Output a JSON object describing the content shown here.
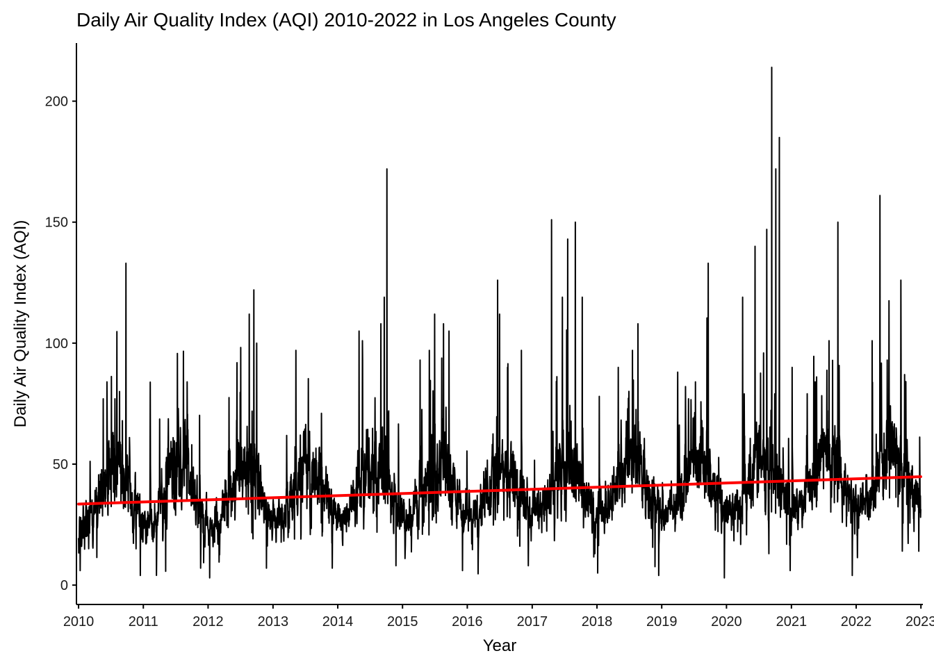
{
  "chart_data": {
    "type": "line",
    "title": "Daily Air Quality Index (AQI) 2010-2022 in Los Angeles County",
    "xlabel": "Year",
    "ylabel": "Daily Air Quality Index (AQI)",
    "x_ticks": [
      "2010",
      "2011",
      "2012",
      "2013",
      "2014",
      "2015",
      "2016",
      "2017",
      "2018",
      "2019",
      "2020",
      "2021",
      "2022",
      "2023"
    ],
    "y_ticks": [
      0,
      50,
      100,
      150,
      200
    ],
    "xlim": [
      "2009-12-20",
      "2023-01-12"
    ],
    "ylim": [
      -8,
      224
    ],
    "grid": false,
    "colors": {
      "series": "#000000",
      "trend": "#ff0000",
      "axis": "#000000"
    },
    "series": [
      {
        "label": "daily AQI",
        "baseline_by_season": {
          "winter_mean": 25,
          "summer_mean": 45,
          "noise_sd": 7
        },
        "yearly_range": [
          {
            "year": 2010,
            "min": 6,
            "max": 133
          },
          {
            "year": 2011,
            "min": 4,
            "max": 84
          },
          {
            "year": 2012,
            "min": 3,
            "max": 122
          },
          {
            "year": 2013,
            "min": 7,
            "max": 97
          },
          {
            "year": 2014,
            "min": 7,
            "max": 172
          },
          {
            "year": 2015,
            "min": 11,
            "max": 112
          },
          {
            "year": 2016,
            "min": 6,
            "max": 126
          },
          {
            "year": 2017,
            "min": 8,
            "max": 151
          },
          {
            "year": 2018,
            "min": 5,
            "max": 108
          },
          {
            "year": 2019,
            "min": 4,
            "max": 133
          },
          {
            "year": 2020,
            "min": 3,
            "max": 214
          },
          {
            "year": 2021,
            "min": 6,
            "max": 150
          },
          {
            "year": 2022,
            "min": 4,
            "max": 161
          }
        ],
        "spikes": [
          {
            "x": "2010-05-20",
            "y": 77
          },
          {
            "x": "2010-06-10",
            "y": 84
          },
          {
            "x": "2010-07-25",
            "y": 77
          },
          {
            "x": "2010-08-20",
            "y": 80
          },
          {
            "x": "2010-09-25",
            "y": 133
          },
          {
            "x": "2010-10-15",
            "y": 61
          },
          {
            "x": "2011-07-15",
            "y": 71
          },
          {
            "x": "2011-09-05",
            "y": 84
          },
          {
            "x": "2011-10-01",
            "y": 58
          },
          {
            "x": "2012-08-20",
            "y": 112
          },
          {
            "x": "2012-09-15",
            "y": 122
          },
          {
            "x": "2012-10-01",
            "y": 100
          },
          {
            "x": "2013-05-10",
            "y": 97
          },
          {
            "x": "2013-10-01",
            "y": 71
          },
          {
            "x": "2014-05-01",
            "y": 105
          },
          {
            "x": "2014-05-20",
            "y": 101
          },
          {
            "x": "2014-09-01",
            "y": 108
          },
          {
            "x": "2014-09-20",
            "y": 119
          },
          {
            "x": "2014-10-05",
            "y": 172
          },
          {
            "x": "2015-04-10",
            "y": 93
          },
          {
            "x": "2015-06-01",
            "y": 97
          },
          {
            "x": "2015-07-01",
            "y": 112
          },
          {
            "x": "2015-08-20",
            "y": 108
          },
          {
            "x": "2015-09-20",
            "y": 105
          },
          {
            "x": "2016-06-20",
            "y": 126
          },
          {
            "x": "2016-07-01",
            "y": 112
          },
          {
            "x": "2016-08-15",
            "y": 90
          },
          {
            "x": "2016-11-01",
            "y": 97
          },
          {
            "x": "2017-04-20",
            "y": 151
          },
          {
            "x": "2017-06-20",
            "y": 119
          },
          {
            "x": "2017-07-20",
            "y": 143
          },
          {
            "x": "2017-09-01",
            "y": 150
          },
          {
            "x": "2017-10-10",
            "y": 119
          },
          {
            "x": "2018-05-01",
            "y": 90
          },
          {
            "x": "2018-07-20",
            "y": 97
          },
          {
            "x": "2018-08-20",
            "y": 108
          },
          {
            "x": "2019-06-01",
            "y": 77
          },
          {
            "x": "2019-07-10",
            "y": 84
          },
          {
            "x": "2019-09-20",
            "y": 133
          },
          {
            "x": "2020-04-01",
            "y": 119
          },
          {
            "x": "2020-06-10",
            "y": 140
          },
          {
            "x": "2020-08-15",
            "y": 147
          },
          {
            "x": "2020-09-12",
            "y": 214
          },
          {
            "x": "2020-10-05",
            "y": 172
          },
          {
            "x": "2020-10-25",
            "y": 185
          },
          {
            "x": "2021-01-05",
            "y": 90
          },
          {
            "x": "2021-05-15",
            "y": 84
          },
          {
            "x": "2021-08-01",
            "y": 101
          },
          {
            "x": "2021-09-20",
            "y": 150
          },
          {
            "x": "2022-04-01",
            "y": 101
          },
          {
            "x": "2022-05-15",
            "y": 161
          },
          {
            "x": "2022-06-25",
            "y": 93
          },
          {
            "x": "2022-09-10",
            "y": 126
          },
          {
            "x": "2022-10-01",
            "y": 87
          }
        ],
        "dips": [
          {
            "x": "2010-01-10",
            "y": 6
          },
          {
            "x": "2010-12-15",
            "y": 4
          },
          {
            "x": "2011-11-20",
            "y": 7
          },
          {
            "x": "2012-01-10",
            "y": 3
          },
          {
            "x": "2012-11-25",
            "y": 7
          },
          {
            "x": "2013-12-01",
            "y": 7
          },
          {
            "x": "2014-11-25",
            "y": 8
          },
          {
            "x": "2015-01-15",
            "y": 11
          },
          {
            "x": "2015-12-05",
            "y": 6
          },
          {
            "x": "2016-12-10",
            "y": 8
          },
          {
            "x": "2017-12-20",
            "y": 13
          },
          {
            "x": "2018-01-05",
            "y": 5
          },
          {
            "x": "2018-12-15",
            "y": 4
          },
          {
            "x": "2019-12-20",
            "y": 3
          },
          {
            "x": "2020-12-25",
            "y": 6
          },
          {
            "x": "2021-12-10",
            "y": 4
          },
          {
            "x": "2022-12-20",
            "y": 14
          }
        ]
      },
      {
        "label": "linear trend",
        "x": [
          "2010-01-01",
          "2022-12-31"
        ],
        "y": [
          33.5,
          44.8
        ]
      }
    ]
  }
}
